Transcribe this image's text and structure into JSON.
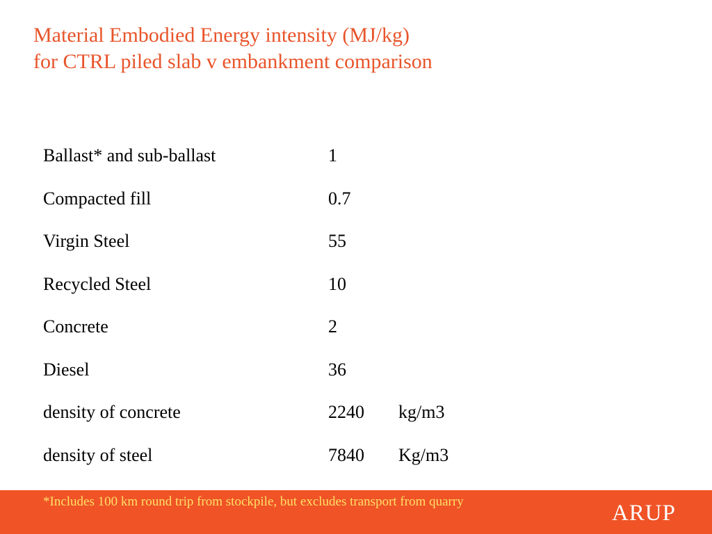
{
  "title": {
    "line1": "Material Embodied Energy intensity (MJ/kg)",
    "line2": "for CTRL piled slab v embankment comparison"
  },
  "rows": [
    {
      "label": "Ballast* and sub-ballast",
      "value": "1",
      "unit": ""
    },
    {
      "label": "Compacted fill",
      "value": "0.7",
      "unit": ""
    },
    {
      "label": "Virgin Steel",
      "value": "55",
      "unit": ""
    },
    {
      "label": "Recycled Steel",
      "value": "10",
      "unit": ""
    },
    {
      "label": "Concrete",
      "value": "2",
      "unit": ""
    },
    {
      "label": "Diesel",
      "value": "36",
      "unit": ""
    },
    {
      "label": "density of concrete",
      "value": "2240",
      "unit": "kg/m3"
    },
    {
      "label": "density of steel",
      "value": "7840",
      "unit": "Kg/m3"
    }
  ],
  "footer": {
    "footnote": "*Includes 100 km round trip from stockpile, but excludes transport from quarry",
    "logo": "ARUP"
  },
  "colors": {
    "title": "#e8542a",
    "footer_bar": "#ef5326",
    "footnote_text": "#ffe066",
    "logo_text": "#ffffff"
  }
}
